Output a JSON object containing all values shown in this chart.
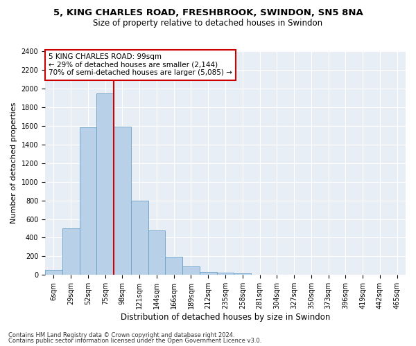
{
  "title1": "5, KING CHARLES ROAD, FRESHBROOK, SWINDON, SN5 8NA",
  "title2": "Size of property relative to detached houses in Swindon",
  "xlabel": "Distribution of detached houses by size in Swindon",
  "ylabel": "Number of detached properties",
  "categories": [
    "6sqm",
    "29sqm",
    "52sqm",
    "75sqm",
    "98sqm",
    "121sqm",
    "144sqm",
    "166sqm",
    "189sqm",
    "212sqm",
    "235sqm",
    "258sqm",
    "281sqm",
    "304sqm",
    "327sqm",
    "350sqm",
    "373sqm",
    "396sqm",
    "419sqm",
    "442sqm",
    "465sqm"
  ],
  "values": [
    55,
    500,
    1580,
    1950,
    1590,
    800,
    475,
    195,
    90,
    35,
    25,
    20,
    0,
    0,
    0,
    0,
    0,
    0,
    0,
    0,
    0
  ],
  "bar_color": "#b8d0e8",
  "bar_edge_color": "#6a9fc8",
  "annotation_title": "5 KING CHARLES ROAD: 99sqm",
  "annotation_line1": "← 29% of detached houses are smaller (2,144)",
  "annotation_line2": "70% of semi-detached houses are larger (5,085) →",
  "vline_x": 3.5,
  "ylim": [
    0,
    2400
  ],
  "yticks": [
    0,
    200,
    400,
    600,
    800,
    1000,
    1200,
    1400,
    1600,
    1800,
    2000,
    2200,
    2400
  ],
  "footer1": "Contains HM Land Registry data © Crown copyright and database right 2024.",
  "footer2": "Contains public sector information licensed under the Open Government Licence v3.0.",
  "bg_color": "#e8eef5",
  "annotation_box_color": "#ffffff",
  "annotation_box_edge": "#cc0000",
  "vline_color": "#cc0000",
  "title1_fontsize": 9.5,
  "title2_fontsize": 8.5,
  "xlabel_fontsize": 8.5,
  "ylabel_fontsize": 8,
  "tick_fontsize": 7,
  "annotation_fontsize": 7.5,
  "footer_fontsize": 6.0
}
